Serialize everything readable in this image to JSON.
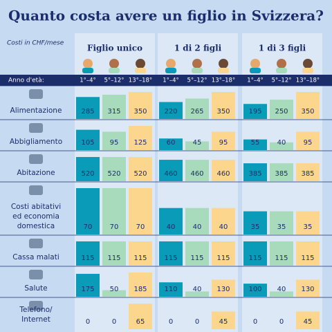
{
  "title": "Quanto costa avere un figlio in Svizzera?",
  "unit_note": "Costi in CHF/mese",
  "groups": [
    "Figlio unico",
    "1 di 2 figli",
    "1 di 3 figli"
  ],
  "age_header": "Anno d'età:",
  "ages": [
    "1°–4°",
    "5°–12°",
    "13°–18°"
  ],
  "age_colors": [
    "#0a9bb8",
    "#a8dbbb",
    "#fbd68c"
  ],
  "rows": [
    {
      "label_lines": [
        "Alimentazione"
      ],
      "values": [
        [
          285,
          315,
          350
        ],
        [
          220,
          265,
          350
        ],
        [
          195,
          250,
          350
        ]
      ]
    },
    {
      "label_lines": [
        "Abbigliamento"
      ],
      "values": [
        [
          105,
          95,
          125
        ],
        [
          60,
          45,
          95
        ],
        [
          55,
          40,
          95
        ]
      ]
    },
    {
      "label_lines": [
        "Abitazione"
      ],
      "values": [
        [
          520,
          520,
          520
        ],
        [
          460,
          460,
          460
        ],
        [
          385,
          385,
          385
        ]
      ]
    },
    {
      "label_lines": [
        "Costi abitativi",
        "ed economia",
        "domestica"
      ],
      "values": [
        [
          70,
          70,
          70
        ],
        [
          40,
          40,
          40
        ],
        [
          35,
          35,
          35
        ]
      ]
    },
    {
      "label_lines": [
        "Cassa malati"
      ],
      "values": [
        [
          115,
          115,
          115
        ],
        [
          115,
          115,
          115
        ],
        [
          115,
          115,
          115
        ]
      ]
    },
    {
      "label_lines": [
        "Salute"
      ],
      "values": [
        [
          175,
          50,
          185
        ],
        [
          110,
          40,
          130
        ],
        [
          100,
          40,
          130
        ]
      ]
    },
    {
      "label_lines": [
        "Telefono/",
        "Internet"
      ],
      "values": [
        [
          0,
          0,
          65
        ],
        [
          0,
          0,
          45
        ],
        [
          0,
          0,
          45
        ]
      ]
    }
  ]
}
